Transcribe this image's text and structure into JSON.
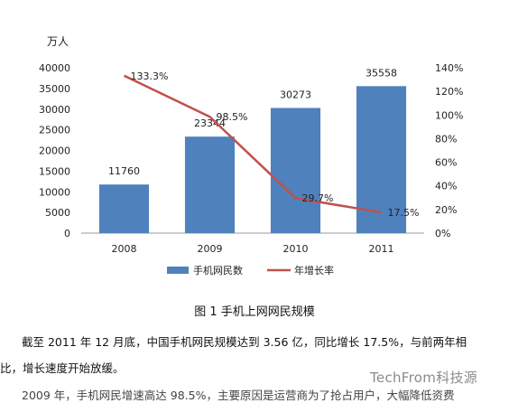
{
  "chart_data": {
    "type": "bar",
    "categories": [
      "2008",
      "2009",
      "2010",
      "2011"
    ],
    "series": [
      {
        "name": "手机网民数",
        "type": "bar",
        "axis": "left",
        "values": [
          11760,
          23344,
          30273,
          35558
        ],
        "labels": [
          "11760",
          "23344",
          "30273",
          "35558"
        ],
        "color": "#4F81BD"
      },
      {
        "name": "年增长率",
        "type": "line",
        "axis": "right",
        "values": [
          133.3,
          98.5,
          29.7,
          17.5
        ],
        "labels": [
          "133.3%",
          "98.5%",
          "29.7%",
          "17.5%"
        ],
        "color": "#C0504D"
      }
    ],
    "left_axis": {
      "unit": "万人",
      "ylim": [
        0,
        40000
      ],
      "ticks": [
        "0",
        "5000",
        "10000",
        "15000",
        "20000",
        "25000",
        "30000",
        "35000",
        "40000"
      ]
    },
    "right_axis": {
      "ylim": [
        0,
        140
      ],
      "ticks": [
        "0%",
        "20%",
        "40%",
        "60%",
        "80%",
        "100%",
        "120%",
        "140%"
      ]
    },
    "legend": "bottom",
    "grid": false
  },
  "caption": "图 1 手机上网网民规模",
  "paragraph": {
    "line1": "截至 2011 年 12 月底，中国手机网民规模达到 3.56 亿，同比增长 17.5%，与前两年相",
    "line2": "比，增长速度开始放缓。",
    "line3": "2009 年，手机网民增速高达 98.5%，主要原因是运营商为了抢占用户，大幅降低资费"
  },
  "watermark": "TechFrom科技源",
  "colors": {
    "bar": "#4F81BD",
    "line": "#C0504D"
  }
}
